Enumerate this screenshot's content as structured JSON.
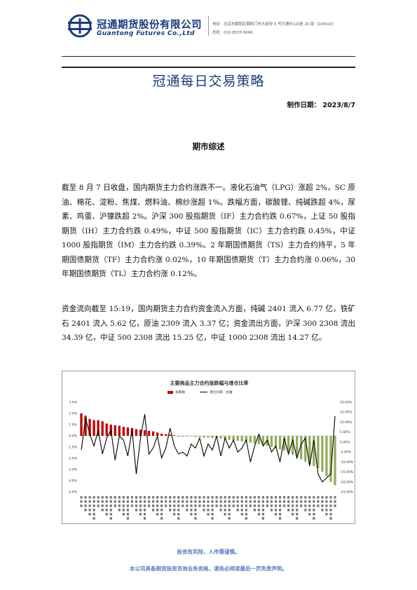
{
  "header": {
    "company_cn": "冠通期货股份有限公司",
    "company_en": "Guantong Futures Co.,Ltd",
    "address": "地址：北京市朝阳区朝阳门外大街甲 6 号万通中心D座 20 层（100020）",
    "phone": "总机：010-8535 6666",
    "brand_color": "#1b3a7a"
  },
  "title": "冠通每日交易策略",
  "date_line": "制作日期：  2023/8/7",
  "section_title": "期市综述",
  "paragraphs": [
    "截至 8 月 7 日收盘，国内期货主力合约涨跌不一。液化石油气（LPG）涨超 2%，SC 原油、棉花、淀粉、焦煤、燃料油、棉纱涨超 1%。跌幅方面，碳酸锂、纯碱跌超 4%，尿素、鸡蛋、沪镍跌超 2%。沪深 300 股指期货（IF）主力合约跌 0.67%，上证 50 股指期货（IH）主力合约跌 0.49%，中证 500 股指期货（IC）主力合约跌 0.45%，中证 1000 股指期货（IM）主力合约跌 0.39%。2 年期国债期货（TS）主力合约持平，5 年期国债期货（TF）主力合约涨 0.02%，10 年期国债期货（T）主力合约涨 0.06%，30 年期国债期货（TL）主力合约涨 0.12%。",
    "资金流向截至 15:19，国内期货主力合约资金流入方面，纯碱 2401 流入 6.77 亿，铁矿石 2401 流入 5.62 亿，原油 2309 流入 3.37 亿；资金流出方面，沪深 300 2308 流出 34.39 亿，中证 500 2308 流出 15.25 亿，中证 1000 2308 流出 14.27 亿。"
  ],
  "chart_data": {
    "type": "bar",
    "title": "主要商品主力合约涨跌幅与增仓比率",
    "legend": [
      "涨跌幅",
      "增仓比率：右轴"
    ],
    "left_ticks": [
      "3.0%",
      "2.0%",
      "1.0%",
      "0.0%",
      "-1.0%",
      "-2.0%",
      "-3.0%",
      "-4.0%",
      "-5.0%"
    ],
    "right_ticks": [
      "20.00%",
      "15.00%",
      "10.00%",
      "5.00%",
      "0.00%",
      "-5.00%",
      "-10.00%",
      "-15.00%",
      "-20.00%",
      "-25.00%"
    ],
    "ylim_left": [
      -5,
      3
    ],
    "ylim_right": [
      -25,
      20
    ],
    "colors": {
      "positive": "#c00000",
      "negative": "#93ad5c",
      "line": "#000000"
    },
    "values": [
      2.0,
      1.8,
      1.5,
      1.4,
      1.4,
      1.3,
      1.1,
      1.0,
      0.95,
      0.9,
      0.8,
      0.75,
      0.7,
      0.6,
      0.55,
      0.5,
      0.45,
      0.4,
      0.3,
      0.2,
      0.15,
      0.1,
      0.05,
      0.0,
      0.0,
      0.0,
      -0.05,
      -0.1,
      -0.1,
      -0.15,
      -0.15,
      -0.2,
      -0.2,
      -0.25,
      -0.3,
      -0.35,
      -0.4,
      -0.45,
      -0.5,
      -0.55,
      -0.6,
      -0.7,
      -0.75,
      -0.8,
      -0.9,
      -1.0,
      -1.1,
      -1.2,
      -1.3,
      -1.5,
      -1.7,
      -1.9,
      -2.1,
      -2.3,
      -2.5,
      -2.7,
      -2.9,
      -3.2,
      -3.6,
      -4.1,
      -4.4
    ],
    "ratio": [
      -4,
      12,
      4,
      -2,
      6,
      -6,
      2,
      6,
      -9,
      3,
      1,
      -7,
      6,
      -16,
      2,
      14,
      -6,
      -3,
      3,
      -8,
      -3,
      7,
      -2,
      -6,
      -5,
      -7,
      -1,
      -3,
      2,
      -7,
      -1,
      -4,
      3,
      -7,
      2,
      -3,
      1,
      -5,
      -3,
      1,
      -10,
      -2,
      4,
      -2,
      1,
      -5,
      -2,
      -10,
      2,
      -6,
      1,
      -8,
      -1,
      2,
      -12,
      1,
      -16,
      -20,
      -18,
      -16,
      13
    ]
  },
  "footer": {
    "risk": "投资有风险，入市需谨慎。",
    "disclaimer": "本公司具备期货投资咨询业务资格，请务必阅读最后一页免责声明。"
  }
}
